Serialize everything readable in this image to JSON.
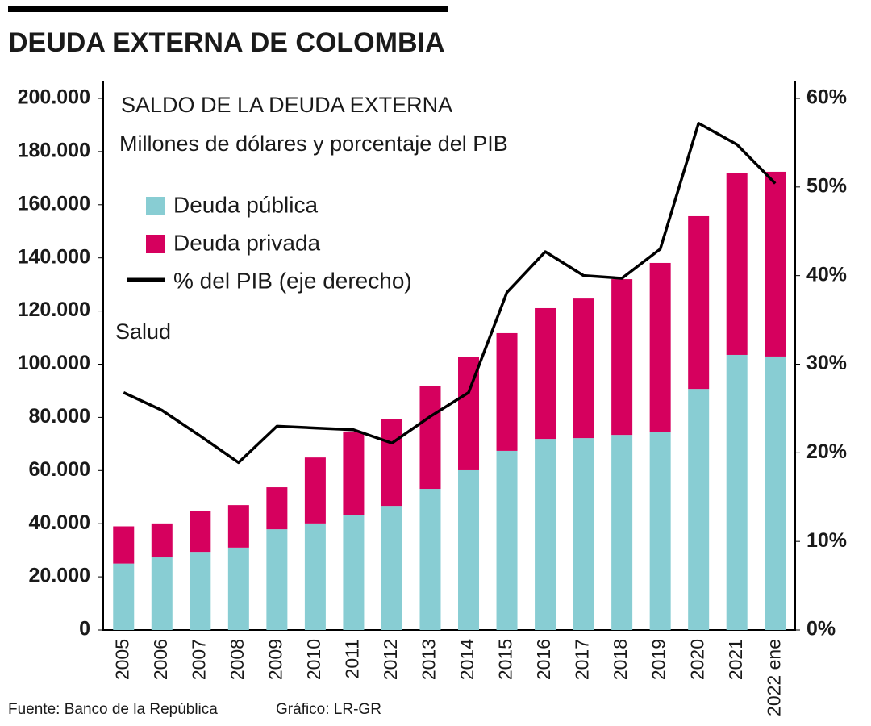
{
  "chart_data": {
    "type": "bar",
    "stacked": true,
    "title": "DEUDA EXTERNA DE COLOMBIA",
    "subtitle": "SALDO DE LA DEUDA EXTERNA",
    "y_label": "Millones de dólares y porcentaje del PIB",
    "annotation": "Salud",
    "source": "Fuente: Banco de la República",
    "credit": "Gráfico: LR-GR",
    "categories": [
      "2005",
      "2006",
      "2007",
      "2008",
      "2009",
      "2010",
      "2011",
      "2012",
      "2013",
      "2014",
      "2015",
      "2016",
      "2017",
      "2018",
      "2019",
      "2020",
      "2021",
      "2022 ene"
    ],
    "series": [
      {
        "name": "Deuda pública",
        "color": "#88cdd3",
        "values": [
          25000,
          27300,
          29400,
          31000,
          37900,
          40100,
          43100,
          46700,
          53100,
          60100,
          67400,
          71900,
          72200,
          73400,
          74400,
          90700,
          103500,
          102900
        ]
      },
      {
        "name": "Deuda privada",
        "color": "#d6005e",
        "values": [
          14000,
          12800,
          15500,
          16000,
          15800,
          24800,
          31600,
          32800,
          38600,
          42500,
          44300,
          49200,
          52500,
          58600,
          63700,
          65000,
          68300,
          69500
        ]
      },
      {
        "name": "% del PIB (eje derecho)",
        "color": "#000000",
        "type": "line",
        "axis": "y2",
        "values": [
          26.8,
          24.8,
          21.9,
          18.9,
          23.0,
          22.8,
          22.6,
          21.1,
          24.1,
          26.8,
          38.1,
          42.7,
          40.0,
          39.7,
          43.0,
          57.2,
          54.8,
          50.4
        ]
      }
    ],
    "ylim": [
      0,
      200000
    ],
    "yticks": [
      0,
      {
        "value": 20000,
        "label": "20.000"
      },
      {
        "value": 40000,
        "label": "40.000"
      },
      {
        "value": 60000,
        "label": "60.000"
      },
      {
        "value": 80000,
        "label": "80.000"
      },
      {
        "value": 100000,
        "label": "100.000"
      },
      {
        "value": 120000,
        "label": "120.000"
      },
      {
        "value": 140000,
        "label": "140.000"
      },
      {
        "value": 160000,
        "label": "160.000"
      },
      {
        "value": 180000,
        "label": "180.000"
      },
      {
        "value": 200000,
        "label": "200.000"
      }
    ],
    "y2lim": [
      0,
      60
    ],
    "y2ticks": [
      {
        "value": 0,
        "label": "0%"
      },
      {
        "value": 10,
        "label": "10%"
      },
      {
        "value": 20,
        "label": "20%"
      },
      {
        "value": 30,
        "label": "30%"
      },
      {
        "value": 40,
        "label": "40%"
      },
      {
        "value": 50,
        "label": "50%"
      },
      {
        "value": 60,
        "label": "60%"
      }
    ],
    "legend": "upper left"
  }
}
